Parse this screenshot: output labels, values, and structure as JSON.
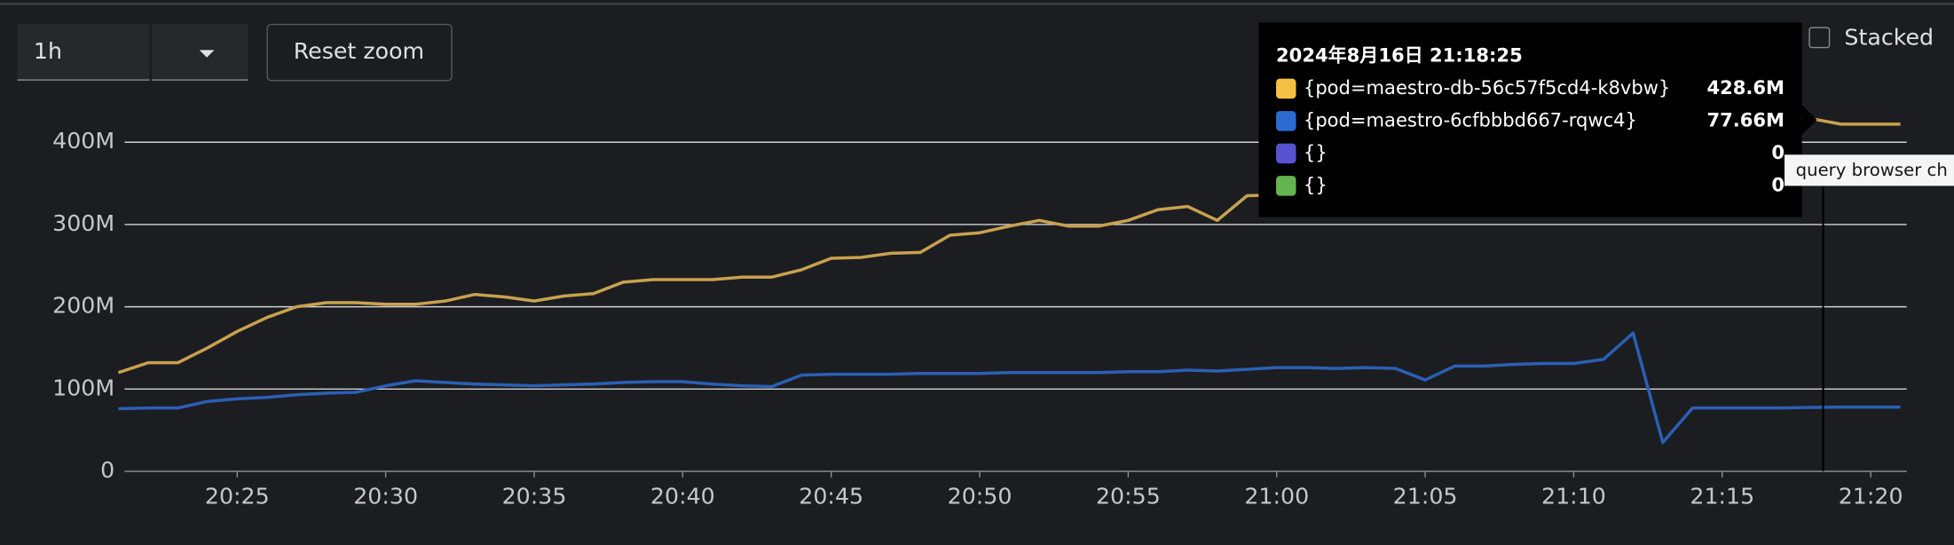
{
  "controls": {
    "range": "1h",
    "reset_zoom": "Reset zoom",
    "stacked": "Stacked"
  },
  "tooltip": {
    "title": "2024年8月16日 21:18:25",
    "rows": [
      {
        "name": "{pod=maestro-db-56c57f5cd4-k8vbw}",
        "color": "#f4c145",
        "value": "428.6M"
      },
      {
        "name": "{pod=maestro-6cfbbbd667-rqwc4}",
        "color": "#2b6bd2",
        "value": "77.66M"
      },
      {
        "name": "{}",
        "color": "#5752d1",
        "value": "0"
      },
      {
        "name": "{}",
        "color": "#63b450",
        "value": "0"
      }
    ]
  },
  "hover_label": "query browser ch",
  "chart_data": {
    "type": "line",
    "x": [
      "20:21",
      "20:22",
      "20:23",
      "20:24",
      "20:25",
      "20:26",
      "20:27",
      "20:28",
      "20:29",
      "20:30",
      "20:31",
      "20:32",
      "20:33",
      "20:34",
      "20:35",
      "20:36",
      "20:37",
      "20:38",
      "20:39",
      "20:40",
      "20:41",
      "20:42",
      "20:43",
      "20:44",
      "20:45",
      "20:46",
      "20:47",
      "20:48",
      "20:49",
      "20:50",
      "20:51",
      "20:52",
      "20:53",
      "20:54",
      "20:55",
      "20:56",
      "20:57",
      "20:58",
      "20:59",
      "21:00",
      "21:01",
      "21:02",
      "21:03",
      "21:04",
      "21:05",
      "21:06",
      "21:07",
      "21:08",
      "21:09",
      "21:10",
      "21:11",
      "21:12",
      "21:13",
      "21:14",
      "21:15",
      "21:16",
      "21:17",
      "21:18",
      "21:19",
      "21:20",
      "21:21"
    ],
    "series": [
      {
        "color": "#c9a14e",
        "values": [
          120,
          132,
          132,
          150,
          170,
          187,
          200,
          205,
          205,
          203,
          203,
          207,
          215,
          212,
          207,
          213,
          216,
          230,
          233,
          233,
          233,
          236,
          236,
          245,
          259,
          260,
          265,
          266,
          287,
          290,
          298,
          305,
          298,
          298,
          305,
          318,
          322,
          305,
          335,
          336,
          337,
          338,
          340,
          350,
          360,
          370,
          380,
          390,
          400,
          405,
          410,
          415,
          420,
          425,
          426,
          428,
          428,
          428.6,
          422,
          422,
          422
        ]
      },
      {
        "color": "#2b5fb4",
        "values": [
          76,
          77,
          77,
          85,
          88,
          90,
          93,
          95,
          96,
          104,
          110,
          108,
          106,
          105,
          104,
          105,
          106,
          108,
          109,
          109,
          106,
          104,
          103,
          117,
          118,
          118,
          118,
          119,
          119,
          119,
          120,
          120,
          120,
          120,
          121,
          121,
          123,
          122,
          124,
          126,
          126,
          125,
          126,
          125,
          111,
          128,
          128,
          130,
          131,
          131,
          136,
          168,
          35,
          77,
          77,
          77,
          77,
          77.66,
          78,
          78,
          78
        ]
      }
    ],
    "xlim": [
      "20:21",
      "21:21"
    ],
    "xticks": [
      "20:25",
      "20:30",
      "20:35",
      "20:40",
      "20:45",
      "20:50",
      "20:55",
      "21:00",
      "21:05",
      "21:10",
      "21:15",
      "21:20"
    ],
    "ylim": [
      0,
      400
    ],
    "yticks": [
      {
        "value": 0,
        "label": "0"
      },
      {
        "value": 100,
        "label": "100M"
      },
      {
        "value": 200,
        "label": "200M"
      },
      {
        "value": 300,
        "label": "300M"
      },
      {
        "value": 400,
        "label": "400M"
      }
    ],
    "grid": true
  }
}
